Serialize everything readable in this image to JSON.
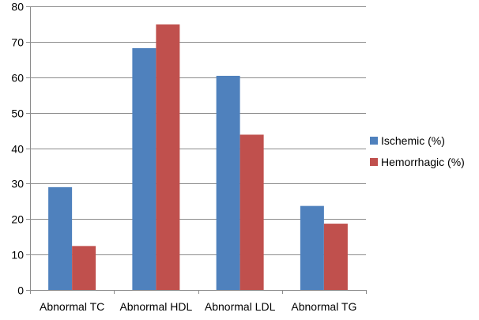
{
  "chart_data": {
    "type": "bar",
    "categories": [
      "Abnormal TC",
      "Abnormal HDL",
      "Abnormal LDL",
      "Abnormal TG"
    ],
    "series": [
      {
        "name": "Ischemic (%)",
        "values": [
          29,
          68.2,
          60.4,
          23.7
        ],
        "color": "#4F81BD"
      },
      {
        "name": "Hemorrhagic (%)",
        "values": [
          12.4,
          74.9,
          43.8,
          18.7
        ],
        "color": "#C0504D"
      }
    ],
    "ylim": [
      0,
      80
    ],
    "yticks": [
      "0",
      "10",
      "20",
      "30",
      "40",
      "50",
      "60",
      "70",
      "80"
    ],
    "grid": true,
    "legend_position": "right"
  }
}
